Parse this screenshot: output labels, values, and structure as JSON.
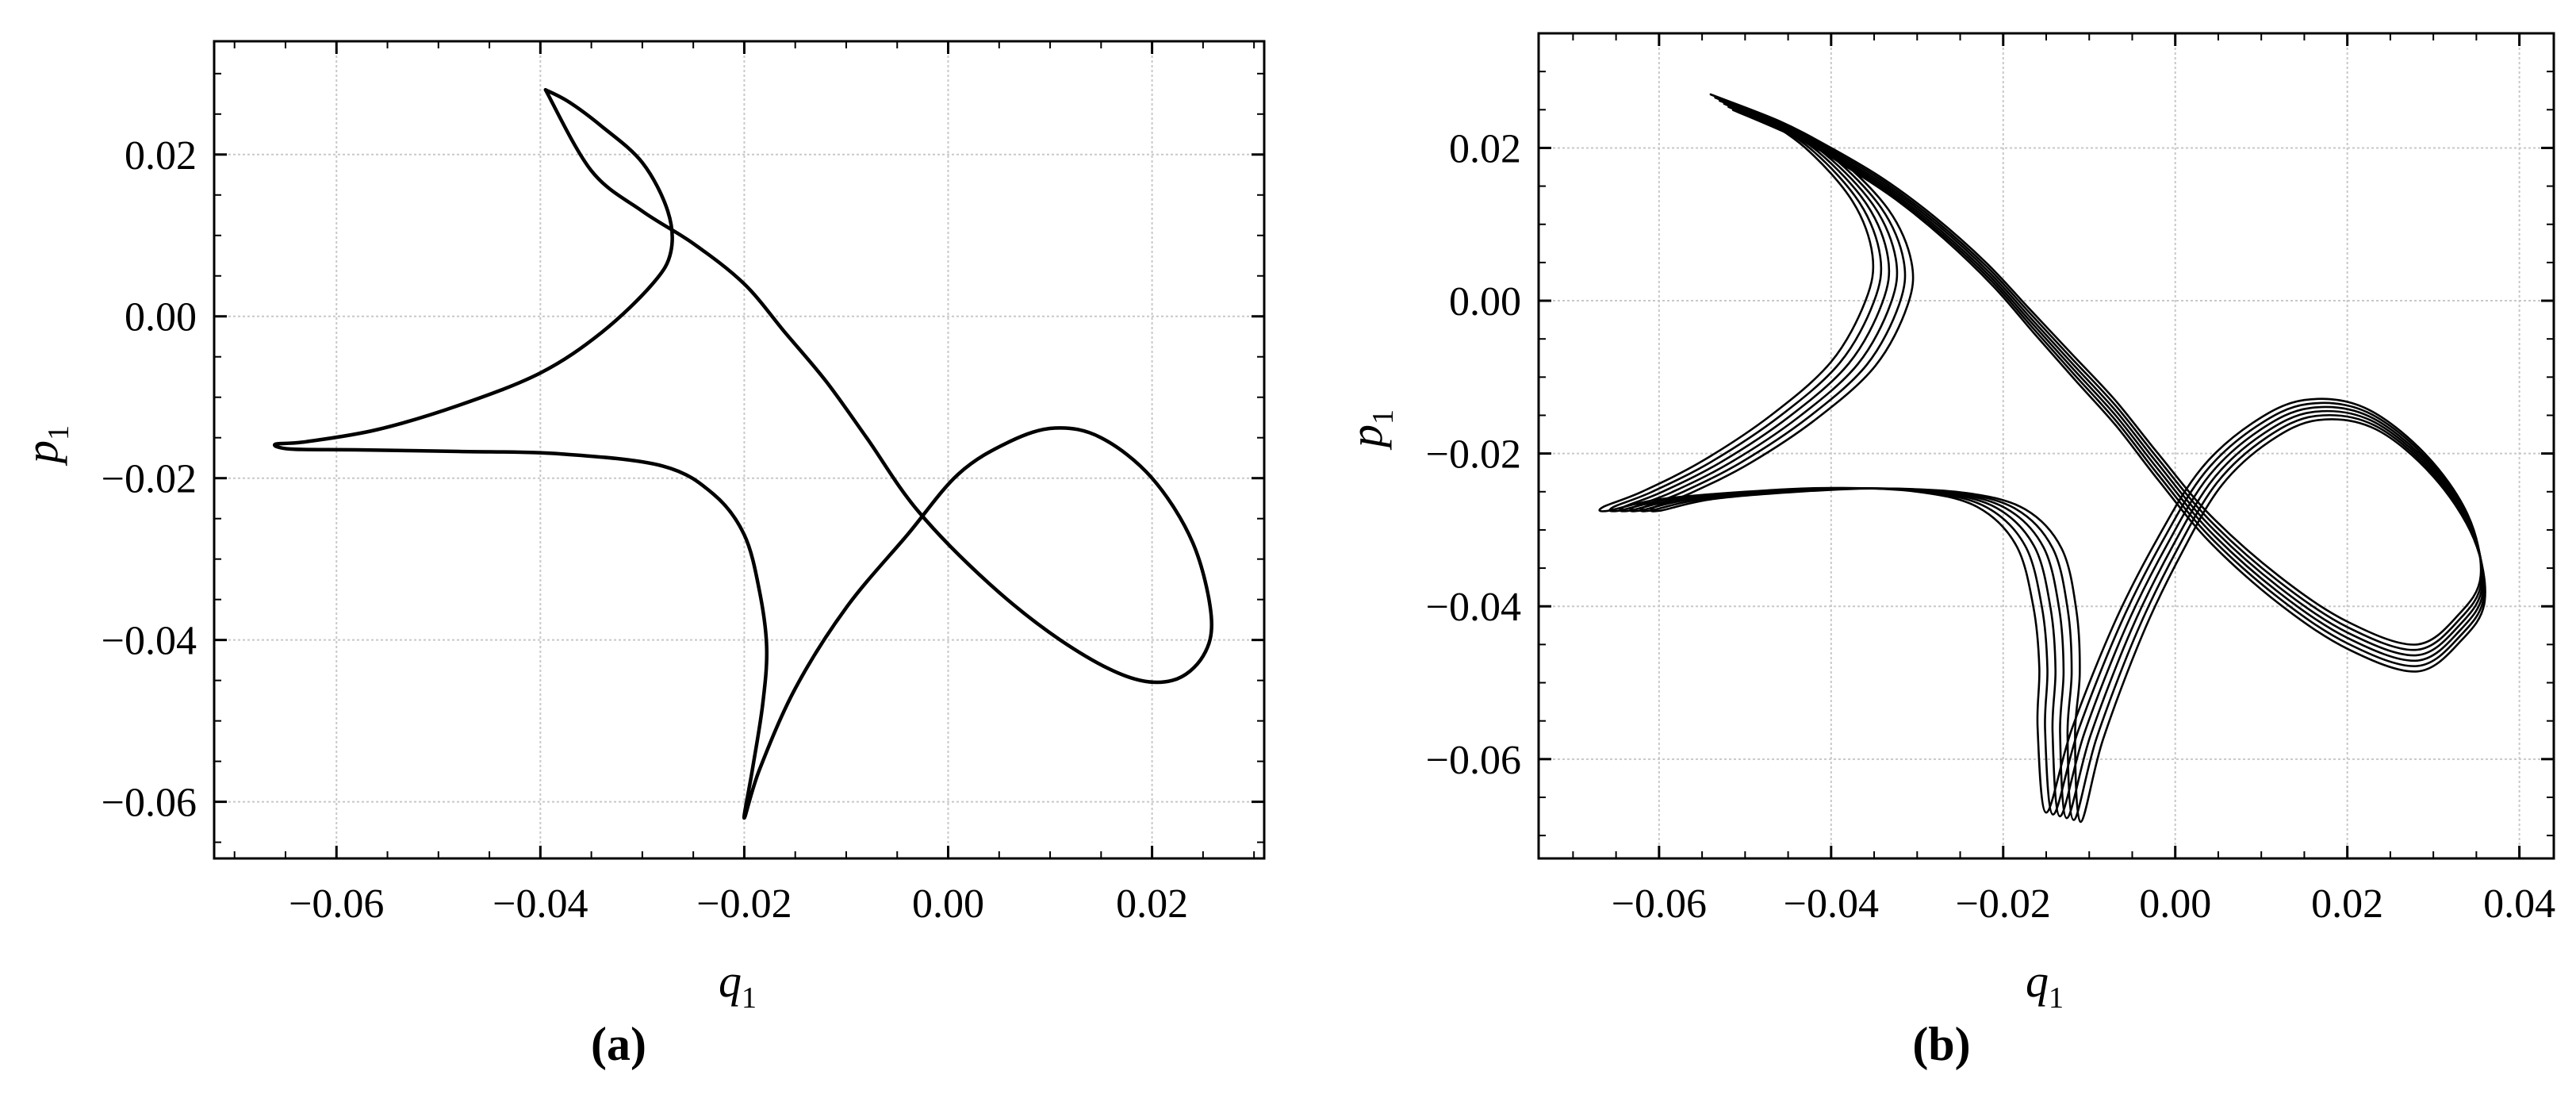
{
  "panels": [
    {
      "id": "a",
      "label": "(a)",
      "chart_data": {
        "type": "line",
        "xlabel": "q",
        "xlabel_sub": "1",
        "ylabel": "p",
        "ylabel_sub": "1",
        "xlim": [
          -0.072,
          0.031
        ],
        "ylim": [
          -0.067,
          0.034
        ],
        "xticks": [
          -0.06,
          -0.04,
          -0.02,
          0.0,
          0.02
        ],
        "xtick_labels": [
          "−0.06",
          "−0.04",
          "−0.02",
          "0.00",
          "0.02"
        ],
        "yticks": [
          -0.06,
          -0.04,
          -0.02,
          0.0,
          0.02
        ],
        "ytick_labels": [
          "−0.06",
          "−0.04",
          "−0.02",
          "0.00",
          "0.02"
        ],
        "grid": true,
        "series_color": "#000000",
        "x": [
          -0.0395,
          -0.0372,
          -0.034,
          -0.03,
          -0.0275,
          -0.0272,
          -0.029,
          -0.034,
          -0.04,
          -0.048,
          -0.056,
          -0.063,
          -0.066,
          -0.0645,
          -0.058,
          -0.048,
          -0.038,
          -0.028,
          -0.023,
          -0.02,
          -0.0185,
          -0.0178,
          -0.0182,
          -0.0192,
          -0.02,
          -0.0185,
          -0.015,
          -0.01,
          -0.004,
          0.001,
          0.006,
          0.0105,
          0.015,
          0.02,
          0.024,
          0.0258,
          0.025,
          0.022,
          0.0175,
          0.011,
          0.004,
          -0.003,
          -0.008,
          -0.012,
          -0.016,
          -0.02,
          -0.025,
          -0.03,
          -0.035,
          -0.0395
        ],
        "y": [
          0.028,
          0.0265,
          0.0235,
          0.019,
          0.013,
          0.008,
          0.004,
          -0.002,
          -0.007,
          -0.011,
          -0.014,
          -0.0155,
          -0.0158,
          -0.0164,
          -0.0165,
          -0.0167,
          -0.017,
          -0.0185,
          -0.022,
          -0.027,
          -0.034,
          -0.041,
          -0.048,
          -0.056,
          -0.062,
          -0.056,
          -0.046,
          -0.036,
          -0.027,
          -0.0195,
          -0.0155,
          -0.0138,
          -0.015,
          -0.02,
          -0.028,
          -0.037,
          -0.042,
          -0.045,
          -0.0445,
          -0.04,
          -0.033,
          -0.024,
          -0.015,
          -0.008,
          -0.002,
          0.004,
          0.009,
          0.013,
          0.018,
          0.028
        ]
      }
    },
    {
      "id": "b",
      "label": "(b)",
      "chart_data": {
        "type": "line",
        "xlabel": "q",
        "xlabel_sub": "1",
        "ylabel": "p",
        "ylabel_sub": "1",
        "xlim": [
          -0.074,
          0.044
        ],
        "ylim": [
          -0.073,
          0.035
        ],
        "xticks": [
          -0.06,
          -0.04,
          -0.02,
          0.0,
          0.02,
          0.04
        ],
        "xtick_labels": [
          "−0.06",
          "−0.04",
          "−0.02",
          "0.00",
          "0.02",
          "0.04"
        ],
        "yticks": [
          -0.06,
          -0.04,
          -0.02,
          0.0,
          0.02
        ],
        "ytick_labels": [
          "−0.06",
          "−0.04",
          "−0.02",
          "0.00",
          "0.02"
        ],
        "grid": true,
        "series_color": "#000000",
        "base_x": [
          -0.054,
          -0.049,
          -0.043,
          -0.0375,
          -0.0352,
          -0.036,
          -0.04,
          -0.047,
          -0.055,
          -0.062,
          -0.0665,
          -0.066,
          -0.06,
          -0.05,
          -0.04,
          -0.03,
          -0.023,
          -0.0185,
          -0.0165,
          -0.0158,
          -0.016,
          -0.015,
          -0.012,
          -0.007,
          -0.002,
          0.003,
          0.009,
          0.015,
          0.022,
          0.029,
          0.034,
          0.0355,
          0.033,
          0.028,
          0.02,
          0.012,
          0.004,
          -0.002,
          -0.007,
          -0.012,
          -0.017,
          -0.022,
          -0.028,
          -0.034,
          -0.04,
          -0.046,
          -0.054
        ],
        "base_y": [
          0.027,
          0.0245,
          0.02,
          0.013,
          0.006,
          0.0,
          -0.008,
          -0.015,
          -0.021,
          -0.025,
          -0.027,
          -0.0275,
          -0.026,
          -0.025,
          -0.0245,
          -0.025,
          -0.027,
          -0.032,
          -0.04,
          -0.048,
          -0.056,
          -0.067,
          -0.056,
          -0.042,
          -0.031,
          -0.022,
          -0.016,
          -0.013,
          -0.014,
          -0.02,
          -0.028,
          -0.036,
          -0.041,
          -0.045,
          -0.042,
          -0.036,
          -0.028,
          -0.02,
          -0.013,
          -0.007,
          -0.001,
          0.005,
          0.011,
          0.016,
          0.02,
          0.0235,
          0.027
        ],
        "offsets": [
          {
            "dx": 0.0,
            "dy": 0.0
          },
          {
            "dx": 0.0012,
            "dy": -0.0012
          },
          {
            "dx": 0.0024,
            "dy": -0.0024
          },
          {
            "dx": 0.0036,
            "dy": -0.0036
          },
          {
            "dx": 0.0048,
            "dy": -0.0048
          },
          {
            "dx": 0.006,
            "dy": -0.006
          }
        ]
      }
    }
  ]
}
